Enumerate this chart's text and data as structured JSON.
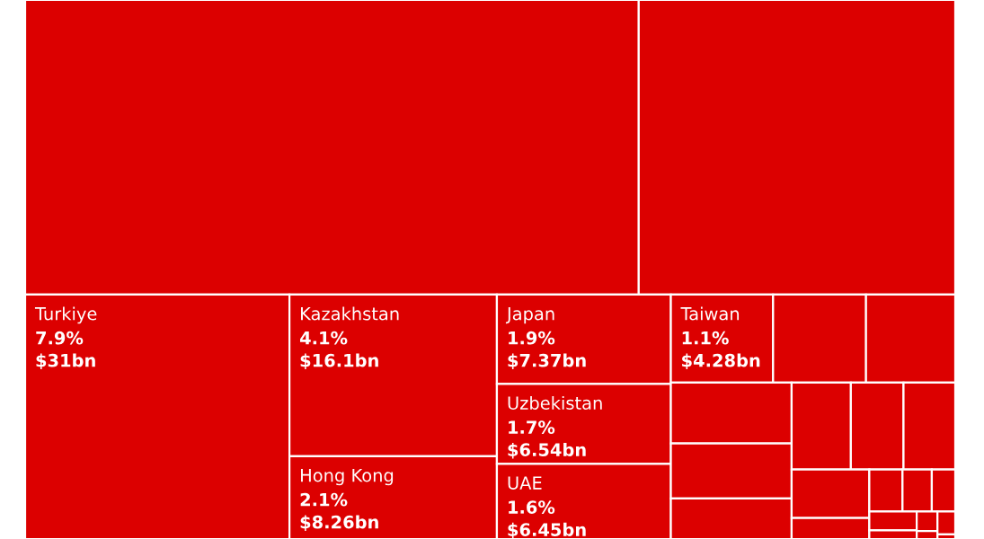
{
  "chart_data": {
    "type": "other",
    "categories": [
      null,
      null,
      "Turkiye",
      "Kazakhstan",
      "Hong Kong",
      "Japan",
      "Uzbekistan",
      "UAE",
      "Taiwan",
      null,
      null,
      null,
      null,
      null,
      null,
      null,
      null,
      null,
      null,
      null,
      null,
      null,
      null,
      null,
      null,
      null,
      null,
      null
    ],
    "values": [
      null,
      null,
      7.9,
      4.1,
      2.1,
      1.9,
      1.7,
      1.6,
      1.1,
      null,
      null,
      null,
      null,
      null,
      null,
      null,
      null,
      null,
      null,
      null,
      null,
      null,
      null,
      null,
      null,
      null,
      null,
      null
    ],
    "value_labels": [
      null,
      null,
      "7.9%\n$31bn",
      "4.1%\n$16.1bn",
      "2.1%\n$8.26bn",
      "1.9%\n$7.37bn",
      "1.7%\n$6.54bn",
      "1.6%\n$6.45bn",
      "1.1%\n$4.28bn",
      null,
      null,
      null,
      null,
      null,
      null,
      null,
      null,
      null,
      null,
      null,
      null,
      null,
      null,
      null,
      null,
      null,
      null,
      null
    ],
    "color": "#dc0000"
  }
}
